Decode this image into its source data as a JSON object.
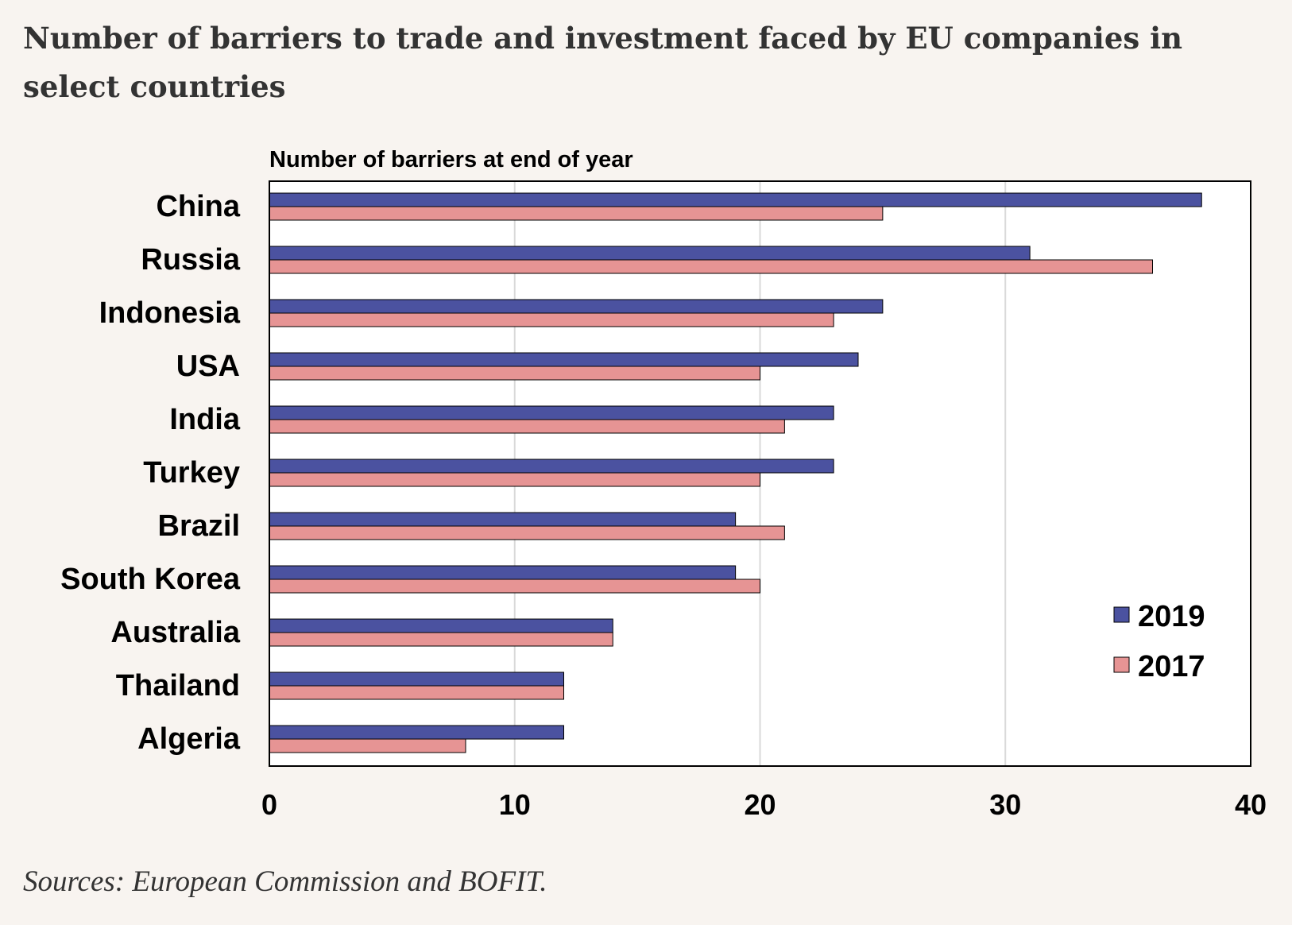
{
  "title": "Number of barriers to trade and investment faced by EU companies in select countries",
  "source": "Sources: European Commission and BOFIT.",
  "colors": {
    "background": "#f8f4f0",
    "series_2019": "#4b52a0",
    "series_2017": "#e69494",
    "grid": "#d9d9d9",
    "axis": "#000000"
  },
  "chart_data": {
    "type": "bar",
    "orientation": "horizontal",
    "subtitle": "Number of barriers at end of year",
    "categories": [
      "China",
      "Russia",
      "Indonesia",
      "USA",
      "India",
      "Turkey",
      "Brazil",
      "South Korea",
      "Australia",
      "Thailand",
      "Algeria"
    ],
    "series": [
      {
        "name": "2019",
        "values": [
          38,
          31,
          25,
          24,
          23,
          23,
          19,
          19,
          14,
          12,
          12
        ]
      },
      {
        "name": "2017",
        "values": [
          25,
          36,
          23,
          20,
          21,
          20,
          21,
          20,
          14,
          12,
          8
        ]
      }
    ],
    "xlim": [
      0,
      40
    ],
    "xticks": [
      0,
      10,
      20,
      30,
      40
    ],
    "xtick_labels": [
      "0",
      "10",
      "20",
      "30",
      "40"
    ],
    "grid": "vertical",
    "legend_position": "bottom-right"
  }
}
